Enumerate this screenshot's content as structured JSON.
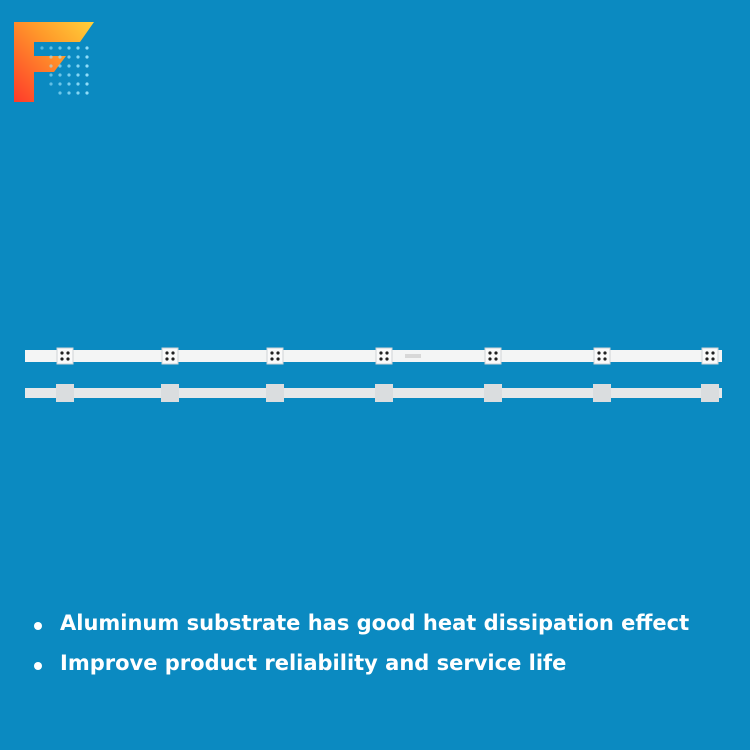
{
  "bullets": [
    "Aluminum substrate has good heat dissipation effect",
    "Improve product reliability and service life"
  ]
}
